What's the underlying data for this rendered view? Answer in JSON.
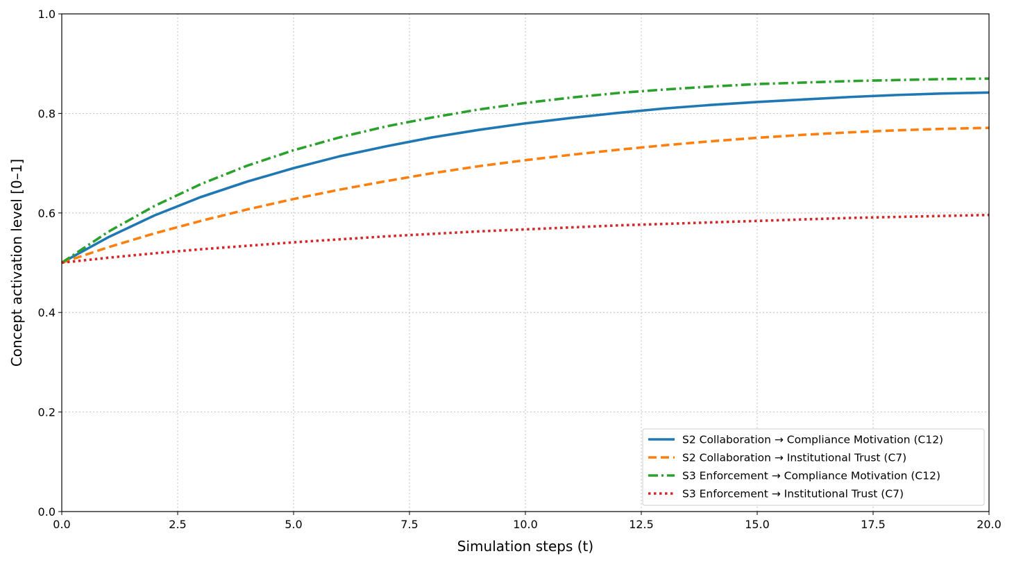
{
  "chart_data": {
    "type": "line",
    "title": "",
    "xlabel": "Simulation steps (t)",
    "ylabel": "Concept activation level [0–1]",
    "xlim": [
      0,
      20
    ],
    "ylim": [
      0,
      1
    ],
    "xticks": [
      "0.0",
      "2.5",
      "5.0",
      "7.5",
      "10.0",
      "12.5",
      "15.0",
      "17.5",
      "20.0"
    ],
    "yticks": [
      "0.0",
      "0.2",
      "0.4",
      "0.6",
      "0.8",
      "1.0"
    ],
    "grid": true,
    "legend_position": "lower-right",
    "x": [
      0,
      1,
      2,
      3,
      4,
      5,
      6,
      7,
      8,
      9,
      10,
      11,
      12,
      13,
      14,
      15,
      16,
      17,
      18,
      19,
      20
    ],
    "series": [
      {
        "name": "S2 Collaboration → Compliance Motivation (C12)",
        "color": "#1f77b4",
        "style": "solid",
        "values": [
          0.5,
          0.551,
          0.595,
          0.632,
          0.663,
          0.69,
          0.714,
          0.734,
          0.752,
          0.767,
          0.78,
          0.791,
          0.801,
          0.81,
          0.817,
          0.823,
          0.828,
          0.833,
          0.837,
          0.84,
          0.842
        ]
      },
      {
        "name": "S2 Collaboration → Institutional Trust (C7)",
        "color": "#ff7f0e",
        "style": "dashed",
        "values": [
          0.5,
          0.531,
          0.559,
          0.584,
          0.607,
          0.628,
          0.647,
          0.664,
          0.68,
          0.694,
          0.706,
          0.717,
          0.727,
          0.736,
          0.744,
          0.751,
          0.757,
          0.762,
          0.766,
          0.769,
          0.771
        ]
      },
      {
        "name": "S3 Enforcement → Compliance Motivation (C12)",
        "color": "#2ca02c",
        "style": "dashdot",
        "values": [
          0.5,
          0.562,
          0.614,
          0.658,
          0.695,
          0.726,
          0.752,
          0.774,
          0.792,
          0.808,
          0.821,
          0.832,
          0.841,
          0.848,
          0.854,
          0.859,
          0.862,
          0.865,
          0.867,
          0.869,
          0.87
        ]
      },
      {
        "name": "S3 Enforcement → Institutional Trust (C7)",
        "color": "#d62728",
        "style": "dotted",
        "values": [
          0.5,
          0.51,
          0.519,
          0.527,
          0.534,
          0.541,
          0.547,
          0.553,
          0.558,
          0.563,
          0.567,
          0.571,
          0.575,
          0.578,
          0.581,
          0.584,
          0.587,
          0.59,
          0.592,
          0.594,
          0.596
        ]
      }
    ]
  }
}
